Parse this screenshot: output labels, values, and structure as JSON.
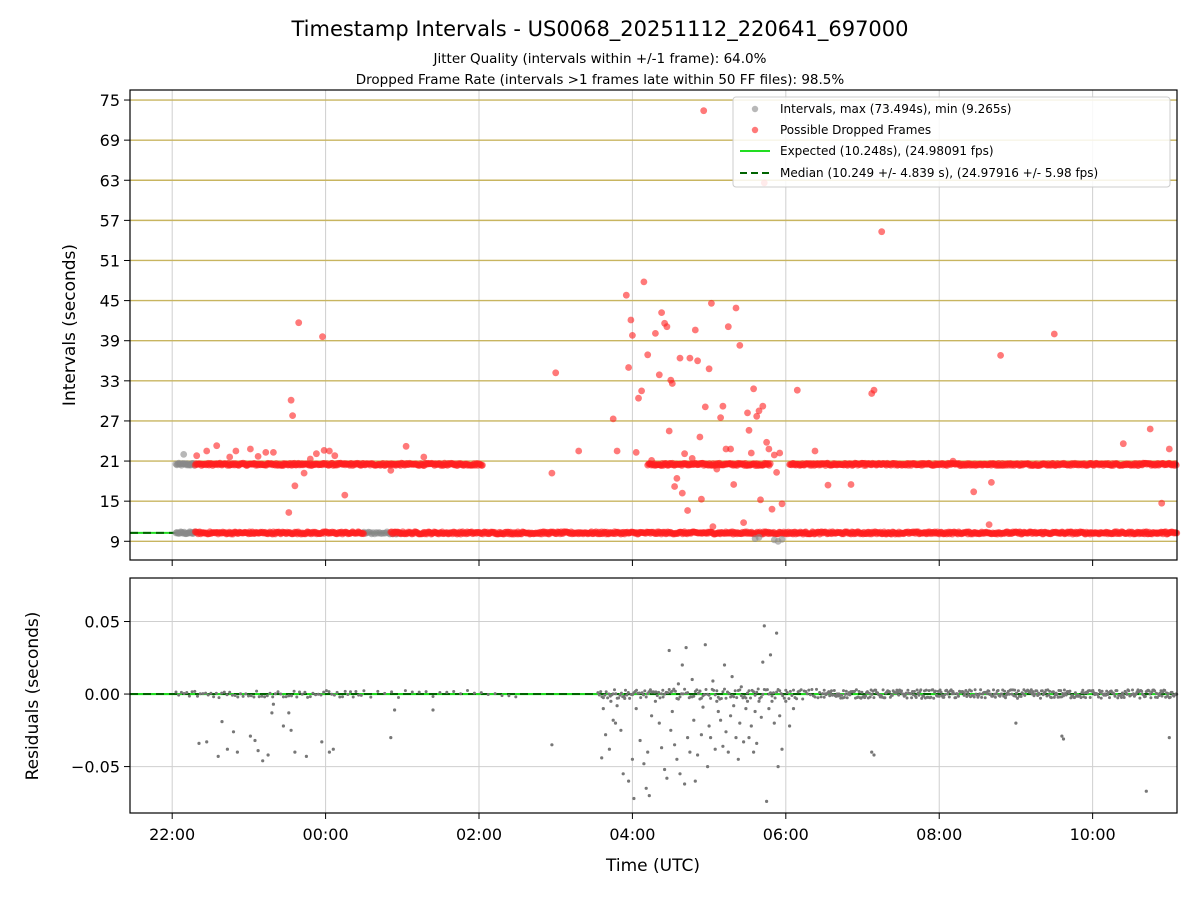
{
  "figure": {
    "title": "Timestamp Intervals - US0068_20251112_220641_697000",
    "subtitle1": "Jitter Quality (intervals within +/-1 frame): 64.0%",
    "subtitle2": "Dropped Frame Rate (intervals >1 frames late within 50 FF files): 98.5%"
  },
  "chart_data": [
    {
      "type": "scatter",
      "ylabel": "Intervals (seconds)",
      "xlabel": "",
      "x_unit": "hours since 22:00 UTC",
      "xlim": [
        -0.55,
        13.1
      ],
      "ylim": [
        6.2,
        76.5
      ],
      "y_ticks": [
        9,
        15,
        21,
        27,
        33,
        39,
        45,
        51,
        57,
        63,
        69,
        75
      ],
      "grid": true,
      "legend_position": "top-right",
      "legend": [
        "Intervals, max (73.494s), min (9.265s)",
        "Possible Dropped Frames",
        "Expected (10.248s), (24.98091 fps)",
        "Median (10.249 +/- 4.839 s), (24.97916 +/- 5.98 fps)"
      ],
      "colors": {
        "intervals": "#888888",
        "dropped": "#ff2020",
        "expected": "#22dd22",
        "median": "#006400",
        "yGrid": "#c8b560",
        "xGrid": "#cfcfcf"
      },
      "expected": 10.248,
      "median": 10.249,
      "bands": [
        {
          "name": "Intervals",
          "color": "gray",
          "y": 20.5,
          "x": [
            0.05,
            0.3
          ],
          "step": 0.012
        },
        {
          "name": "Intervals",
          "color": "gray",
          "y": 10.25,
          "x": [
            0.05,
            0.3
          ],
          "step": 0.012
        },
        {
          "name": "Intervals",
          "color": "gray",
          "y": 10.25,
          "x": [
            2.5,
            3.0
          ],
          "step": 0.02
        },
        {
          "name": "Possible Dropped Frames",
          "color": "red",
          "y": 20.5,
          "x": [
            0.3,
            4.05
          ],
          "step": 0.012
        },
        {
          "name": "Possible Dropped Frames",
          "color": "red",
          "y": 20.5,
          "x": [
            6.2,
            7.8
          ],
          "step": 0.012
        },
        {
          "name": "Possible Dropped Frames",
          "color": "red",
          "y": 20.5,
          "x": [
            8.05,
            13.1
          ],
          "step": 0.012
        },
        {
          "name": "Possible Dropped Frames",
          "color": "red",
          "y": 10.25,
          "x": [
            0.3,
            2.5
          ],
          "step": 0.012
        },
        {
          "name": "Possible Dropped Frames",
          "color": "red",
          "y": 10.25,
          "x": [
            2.85,
            13.1
          ],
          "step": 0.012
        }
      ],
      "outliers": [
        [
          0.15,
          22.0,
          "gray"
        ],
        [
          0.32,
          21.8,
          "red"
        ],
        [
          0.45,
          22.5,
          "red"
        ],
        [
          0.58,
          23.3,
          "red"
        ],
        [
          0.75,
          21.6,
          "red"
        ],
        [
          0.83,
          22.5,
          "red"
        ],
        [
          1.02,
          22.8,
          "red"
        ],
        [
          1.12,
          21.7,
          "red"
        ],
        [
          1.22,
          22.3,
          "red"
        ],
        [
          1.32,
          22.3,
          "red"
        ],
        [
          1.45,
          20.6,
          "red"
        ],
        [
          1.52,
          13.3,
          "red"
        ],
        [
          1.55,
          30.1,
          "red"
        ],
        [
          1.57,
          27.8,
          "red"
        ],
        [
          1.6,
          17.3,
          "red"
        ],
        [
          1.65,
          41.7,
          "red"
        ],
        [
          1.72,
          19.2,
          "red"
        ],
        [
          1.8,
          21.3,
          "red"
        ],
        [
          1.88,
          22.1,
          "red"
        ],
        [
          1.96,
          39.6,
          "red"
        ],
        [
          1.98,
          22.6,
          "red"
        ],
        [
          2.05,
          22.5,
          "red"
        ],
        [
          2.12,
          21.8,
          "red"
        ],
        [
          2.25,
          15.9,
          "red"
        ],
        [
          2.85,
          19.6,
          "red"
        ],
        [
          3.05,
          23.2,
          "red"
        ],
        [
          3.28,
          21.6,
          "red"
        ],
        [
          4.95,
          19.2,
          "red"
        ],
        [
          5.0,
          34.2,
          "red"
        ],
        [
          5.3,
          22.5,
          "red"
        ],
        [
          5.75,
          27.3,
          "red"
        ],
        [
          5.8,
          22.5,
          "red"
        ],
        [
          5.92,
          45.8,
          "red"
        ],
        [
          5.95,
          35.0,
          "red"
        ],
        [
          5.98,
          42.1,
          "red"
        ],
        [
          6.0,
          39.8,
          "red"
        ],
        [
          6.05,
          22.3,
          "red"
        ],
        [
          6.08,
          30.4,
          "red"
        ],
        [
          6.12,
          31.5,
          "red"
        ],
        [
          6.15,
          47.8,
          "red"
        ],
        [
          6.2,
          36.9,
          "red"
        ],
        [
          6.25,
          21.1,
          "red"
        ],
        [
          6.3,
          40.1,
          "red"
        ],
        [
          6.35,
          33.9,
          "red"
        ],
        [
          6.38,
          43.2,
          "red"
        ],
        [
          6.42,
          41.6,
          "red"
        ],
        [
          6.45,
          41.1,
          "red"
        ],
        [
          6.48,
          25.5,
          "red"
        ],
        [
          6.5,
          33.1,
          "red"
        ],
        [
          6.52,
          32.6,
          "red"
        ],
        [
          6.55,
          17.2,
          "red"
        ],
        [
          6.58,
          18.4,
          "red"
        ],
        [
          6.62,
          36.4,
          "red"
        ],
        [
          6.65,
          16.2,
          "red"
        ],
        [
          6.68,
          22.1,
          "red"
        ],
        [
          6.72,
          13.6,
          "red"
        ],
        [
          6.75,
          36.4,
          "red"
        ],
        [
          6.78,
          21.4,
          "red"
        ],
        [
          6.82,
          40.6,
          "red"
        ],
        [
          6.85,
          36.0,
          "red"
        ],
        [
          6.88,
          24.6,
          "red"
        ],
        [
          6.9,
          15.3,
          "red"
        ],
        [
          6.93,
          73.4,
          "red"
        ],
        [
          6.95,
          29.1,
          "red"
        ],
        [
          7.0,
          34.8,
          "red"
        ],
        [
          7.03,
          44.6,
          "red"
        ],
        [
          7.05,
          11.2,
          "red"
        ],
        [
          7.1,
          19.8,
          "red"
        ],
        [
          7.15,
          27.5,
          "red"
        ],
        [
          7.18,
          29.2,
          "red"
        ],
        [
          7.22,
          22.8,
          "red"
        ],
        [
          7.25,
          41.1,
          "red"
        ],
        [
          7.28,
          22.8,
          "red"
        ],
        [
          7.32,
          17.5,
          "red"
        ],
        [
          7.35,
          43.9,
          "red"
        ],
        [
          7.4,
          38.3,
          "red"
        ],
        [
          7.45,
          11.8,
          "red"
        ],
        [
          7.5,
          28.2,
          "red"
        ],
        [
          7.52,
          25.6,
          "red"
        ],
        [
          7.55,
          22.2,
          "red"
        ],
        [
          7.58,
          31.8,
          "red"
        ],
        [
          7.62,
          27.7,
          "red"
        ],
        [
          7.65,
          28.5,
          "red"
        ],
        [
          7.67,
          15.2,
          "red"
        ],
        [
          7.7,
          29.2,
          "red"
        ],
        [
          7.72,
          62.6,
          "red"
        ],
        [
          7.75,
          23.8,
          "red"
        ],
        [
          7.78,
          22.8,
          "red"
        ],
        [
          7.82,
          13.8,
          "red"
        ],
        [
          7.85,
          21.9,
          "red"
        ],
        [
          7.88,
          19.3,
          "red"
        ],
        [
          7.92,
          22.2,
          "red"
        ],
        [
          7.95,
          14.6,
          "red"
        ],
        [
          8.15,
          31.6,
          "red"
        ],
        [
          8.38,
          22.5,
          "red"
        ],
        [
          8.55,
          17.4,
          "red"
        ],
        [
          8.85,
          17.5,
          "red"
        ],
        [
          9.12,
          31.1,
          "red"
        ],
        [
          9.15,
          31.6,
          "red"
        ],
        [
          9.25,
          55.3,
          "red"
        ],
        [
          10.18,
          21.0,
          "red"
        ],
        [
          10.45,
          16.4,
          "red"
        ],
        [
          10.65,
          11.5,
          "red"
        ],
        [
          10.68,
          17.8,
          "red"
        ],
        [
          10.8,
          36.8,
          "red"
        ],
        [
          11.5,
          40.0,
          "red"
        ],
        [
          12.4,
          23.6,
          "red"
        ],
        [
          12.75,
          25.8,
          "red"
        ],
        [
          12.9,
          14.7,
          "red"
        ],
        [
          13.0,
          22.8,
          "red"
        ],
        [
          7.6,
          9.4,
          "gray"
        ],
        [
          7.65,
          9.6,
          "gray"
        ],
        [
          7.85,
          9.2,
          "gray"
        ],
        [
          7.9,
          9.0,
          "gray"
        ],
        [
          7.95,
          9.3,
          "gray"
        ]
      ]
    },
    {
      "type": "scatter",
      "ylabel": "Residuals (seconds)",
      "xlabel": "Time (UTC)",
      "x_unit": "hours since 22:00 UTC",
      "xlim": [
        -0.55,
        13.1
      ],
      "ylim": [
        -0.082,
        0.08
      ],
      "y_ticks": [
        0.05,
        0.0,
        -0.05
      ],
      "y_tick_labels": [
        "0.05",
        "0.00",
        "−0.05"
      ],
      "x_ticks": [
        0,
        2,
        4,
        6,
        8,
        10,
        12
      ],
      "x_tick_labels": [
        "22:00",
        "00:00",
        "02:00",
        "04:00",
        "06:00",
        "08:00",
        "10:00"
      ],
      "grid": true,
      "colors": {
        "residuals": "#777777",
        "zero": "#22dd22",
        "median": "#006400",
        "grid": "#cfcfcf"
      },
      "noise": [
        {
          "x": [
            0.05,
            2.5
          ],
          "step": 0.035,
          "amp": 0.0025
        },
        {
          "x": [
            2.5,
            4.5
          ],
          "step": 0.09,
          "amp": 0.0025
        },
        {
          "x": [
            5.55,
            6.4
          ],
          "step": 0.018,
          "amp": 0.003
        },
        {
          "x": [
            6.4,
            8.5
          ],
          "step": 0.02,
          "amp": 0.0035
        },
        {
          "x": [
            8.5,
            13.1
          ],
          "step": 0.012,
          "amp": 0.003
        }
      ],
      "residuals": [
        [
          0.35,
          -0.034
        ],
        [
          0.45,
          -0.033
        ],
        [
          0.6,
          -0.043
        ],
        [
          0.65,
          -0.019
        ],
        [
          0.72,
          -0.038
        ],
        [
          0.8,
          -0.026
        ],
        [
          0.85,
          -0.04
        ],
        [
          1.02,
          -0.029
        ],
        [
          1.08,
          -0.032
        ],
        [
          1.12,
          -0.039
        ],
        [
          1.18,
          -0.046
        ],
        [
          1.25,
          -0.042
        ],
        [
          1.3,
          -0.013
        ],
        [
          1.32,
          -0.007
        ],
        [
          1.45,
          -0.022
        ],
        [
          1.52,
          -0.013
        ],
        [
          1.55,
          -0.025
        ],
        [
          1.6,
          -0.04
        ],
        [
          1.75,
          -0.043
        ],
        [
          1.95,
          -0.033
        ],
        [
          2.05,
          -0.04
        ],
        [
          2.1,
          -0.038
        ],
        [
          2.85,
          -0.03
        ],
        [
          2.9,
          -0.011
        ],
        [
          3.4,
          -0.011
        ],
        [
          4.95,
          -0.035
        ],
        [
          5.6,
          -0.044
        ],
        [
          5.62,
          -0.01
        ],
        [
          5.65,
          -0.028
        ],
        [
          5.7,
          -0.038
        ],
        [
          5.72,
          -0.005
        ],
        [
          5.75,
          -0.018
        ],
        [
          5.78,
          -0.02
        ],
        [
          5.8,
          -0.008
        ],
        [
          5.85,
          -0.025
        ],
        [
          5.88,
          -0.055
        ],
        [
          5.9,
          -0.003
        ],
        [
          5.95,
          -0.06
        ],
        [
          6.0,
          -0.045
        ],
        [
          6.02,
          -0.072
        ],
        [
          6.05,
          -0.01
        ],
        [
          6.1,
          -0.032
        ],
        [
          6.15,
          -0.048
        ],
        [
          6.18,
          -0.065
        ],
        [
          6.2,
          -0.04
        ],
        [
          6.22,
          -0.07
        ],
        [
          6.25,
          -0.015
        ],
        [
          6.3,
          -0.005
        ],
        [
          6.35,
          -0.02
        ],
        [
          6.38,
          -0.037
        ],
        [
          6.42,
          -0.052
        ],
        [
          6.45,
          -0.058
        ],
        [
          6.48,
          0.03
        ],
        [
          6.5,
          -0.025
        ],
        [
          6.52,
          -0.012
        ],
        [
          6.55,
          -0.035
        ],
        [
          6.58,
          -0.045
        ],
        [
          6.6,
          0.007
        ],
        [
          6.62,
          -0.055
        ],
        [
          6.65,
          0.02
        ],
        [
          6.68,
          -0.062
        ],
        [
          6.7,
          0.032
        ],
        [
          6.72,
          -0.03
        ],
        [
          6.75,
          -0.04
        ],
        [
          6.78,
          0.01
        ],
        [
          6.8,
          -0.018
        ],
        [
          6.82,
          -0.06
        ],
        [
          6.85,
          -0.042
        ],
        [
          6.88,
          0.002
        ],
        [
          6.9,
          -0.028
        ],
        [
          6.92,
          -0.009
        ],
        [
          6.95,
          0.034
        ],
        [
          6.98,
          -0.05
        ],
        [
          7.0,
          -0.022
        ],
        [
          7.02,
          -0.03
        ],
        [
          7.05,
          0.009
        ],
        [
          7.08,
          -0.038
        ],
        [
          7.1,
          -0.005
        ],
        [
          7.12,
          -0.012
        ],
        [
          7.15,
          -0.018
        ],
        [
          7.18,
          -0.036
        ],
        [
          7.2,
          0.02
        ],
        [
          7.22,
          -0.026
        ],
        [
          7.25,
          -0.04
        ],
        [
          7.28,
          -0.015
        ],
        [
          7.3,
          0.012
        ],
        [
          7.32,
          -0.008
        ],
        [
          7.35,
          -0.03
        ],
        [
          7.38,
          -0.045
        ],
        [
          7.4,
          -0.02
        ],
        [
          7.42,
          0.005
        ],
        [
          7.45,
          -0.033
        ],
        [
          7.48,
          -0.01
        ],
        [
          7.5,
          -0.005
        ],
        [
          7.52,
          -0.03
        ],
        [
          7.55,
          -0.022
        ],
        [
          7.58,
          -0.04
        ],
        [
          7.6,
          -0.012
        ],
        [
          7.62,
          -0.034
        ],
        [
          7.65,
          -0.005
        ],
        [
          7.68,
          -0.016
        ],
        [
          7.7,
          0.022
        ],
        [
          7.72,
          0.047
        ],
        [
          7.75,
          -0.074
        ],
        [
          7.78,
          -0.01
        ],
        [
          7.8,
          0.027
        ],
        [
          7.82,
          -0.005
        ],
        [
          7.85,
          -0.02
        ],
        [
          7.88,
          0.042
        ],
        [
          7.9,
          -0.05
        ],
        [
          7.92,
          -0.015
        ],
        [
          7.95,
          -0.038
        ],
        [
          8.0,
          -0.005
        ],
        [
          8.05,
          -0.022
        ],
        [
          8.1,
          -0.01
        ],
        [
          9.12,
          -0.04
        ],
        [
          9.15,
          -0.042
        ],
        [
          11.0,
          -0.02
        ],
        [
          11.6,
          -0.029
        ],
        [
          11.62,
          -0.031
        ],
        [
          12.7,
          -0.067
        ],
        [
          13.0,
          -0.03
        ]
      ]
    }
  ]
}
